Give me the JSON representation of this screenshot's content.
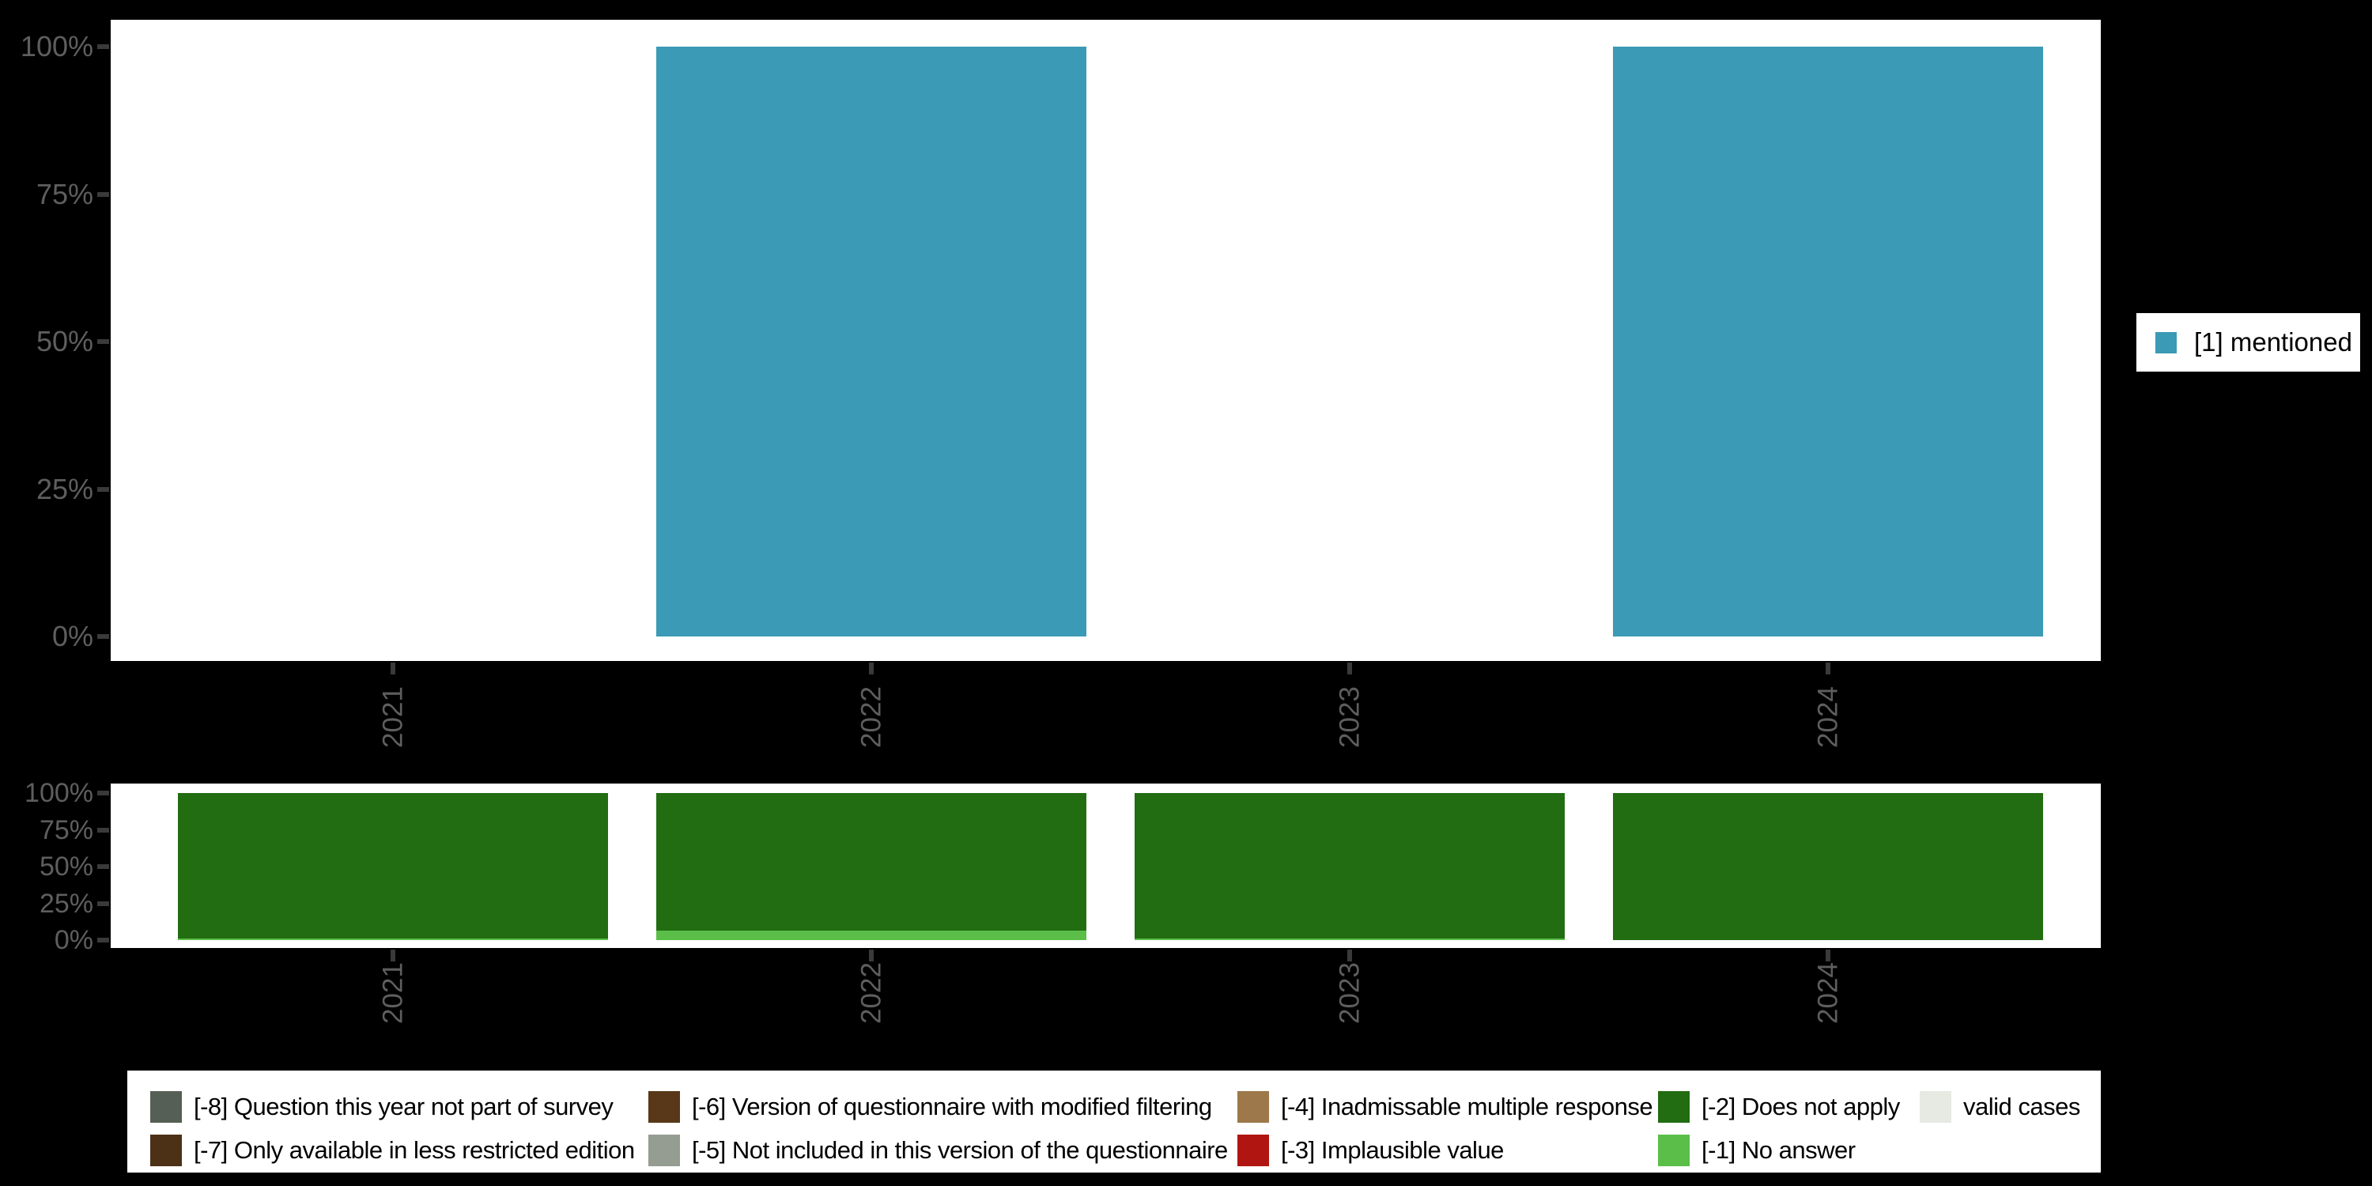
{
  "background_color": "#000000",
  "panel_color": "#ffffff",
  "axis": {
    "label_color": "#5e5e5e",
    "tick_color": "#3a3a3a"
  },
  "chart_data": [
    {
      "name": "value-distribution",
      "type": "bar",
      "title": "",
      "xlabel": "",
      "ylabel": "",
      "categories": [
        "2021",
        "2022",
        "2023",
        "2024"
      ],
      "yticks": [
        "100%",
        "75%",
        "50%",
        "25%",
        "0%"
      ],
      "ylim": [
        0,
        100
      ],
      "grid": false,
      "series": [
        {
          "name": "[1] mentioned",
          "color": "#3b9ab5",
          "values": [
            0,
            100,
            0,
            100
          ]
        }
      ],
      "legend": {
        "position": "right",
        "items": [
          {
            "label": "[1] mentioned",
            "color": "#3b9ab5"
          }
        ]
      }
    },
    {
      "name": "missing-values-distribution",
      "type": "bar",
      "stacked": true,
      "title": "",
      "xlabel": "",
      "ylabel": "",
      "categories": [
        "2021",
        "2022",
        "2023",
        "2024"
      ],
      "yticks": [
        "100%",
        "75%",
        "50%",
        "25%",
        "0%"
      ],
      "ylim": [
        0,
        100
      ],
      "grid": false,
      "series": [
        {
          "name": "[-1] No answer",
          "color": "#5bbe49",
          "values": [
            1,
            6.5,
            1,
            0
          ]
        },
        {
          "name": "[-2] Does not apply",
          "color": "#226c11",
          "values": [
            99,
            93.5,
            99,
            100
          ]
        }
      ],
      "legend": {
        "position": "bottom"
      }
    }
  ],
  "missing_legend": {
    "items": [
      {
        "label": "[-8] Question this year not part of survey",
        "color": "#565f55"
      },
      {
        "label": "[-7] Only available in less restricted edition",
        "color": "#4c3117"
      },
      {
        "label": "[-6] Version of questionnaire with modified filtering",
        "color": "#583818"
      },
      {
        "label": "[-5] Not included in this version of the questionnaire",
        "color": "#959c91"
      },
      {
        "label": "[-4] Inadmissable multiple response",
        "color": "#9d784a"
      },
      {
        "label": "[-3] Implausible value",
        "color": "#b01511"
      },
      {
        "label": "[-2] Does not apply",
        "color": "#226c11"
      },
      {
        "label": "[-1] No answer",
        "color": "#5bbe49"
      },
      {
        "label": "valid cases",
        "color": "#e6eae2"
      }
    ]
  }
}
